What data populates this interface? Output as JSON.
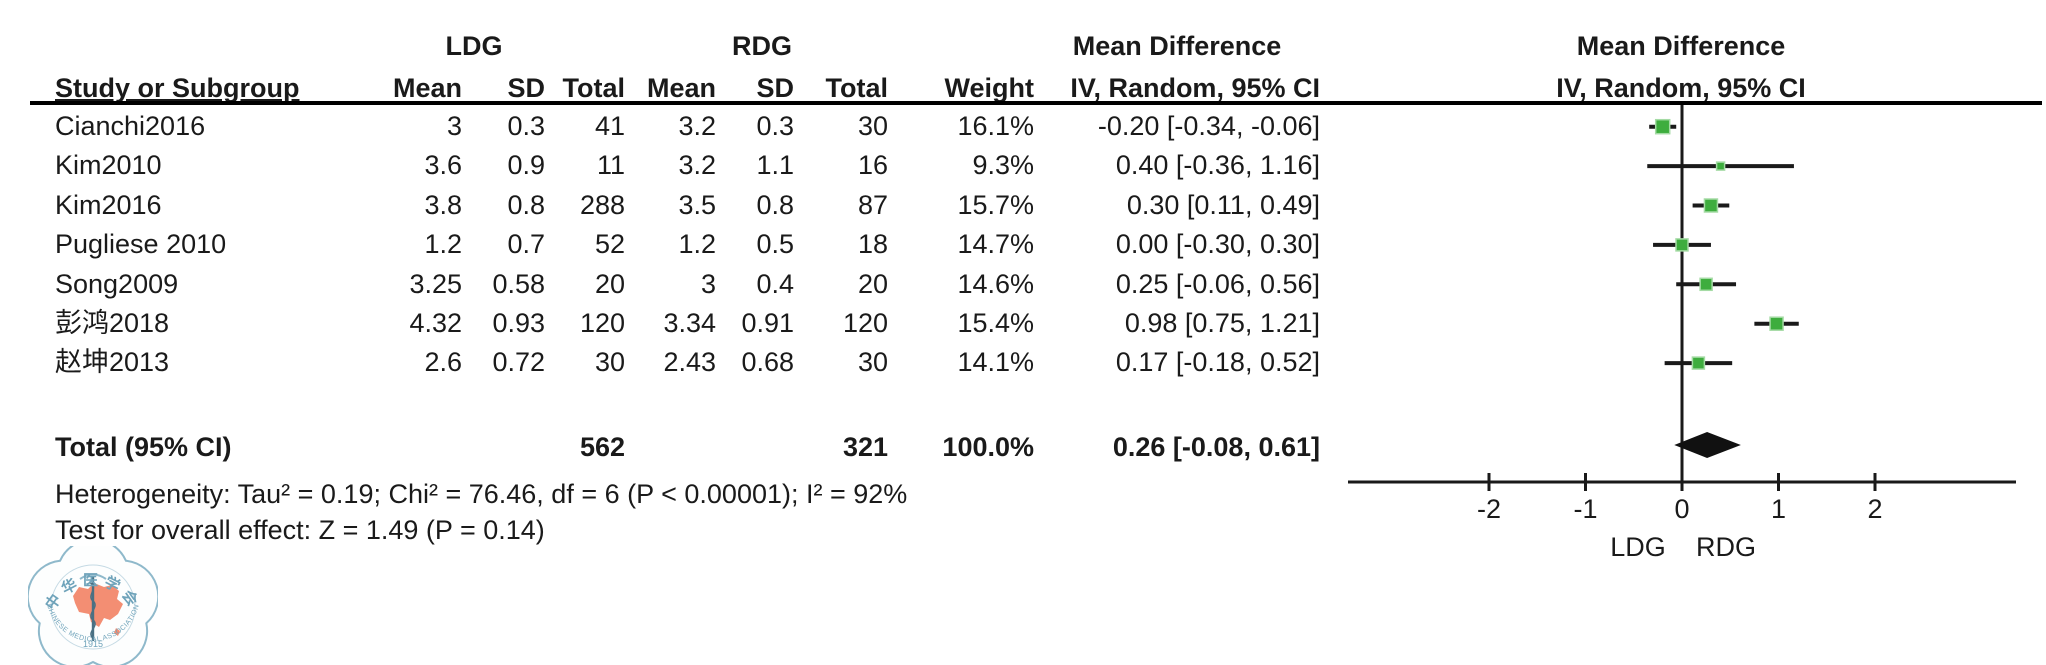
{
  "colors": {
    "marker_green": "#3EAD3E",
    "marker_green_halo": "#A5DBA5",
    "line_black": "#1a1a1a",
    "diamond_black": "#111111",
    "logo_blue": "#6FA3BA",
    "logo_orange": "#F2886C"
  },
  "header": {
    "group_left": "LDG",
    "group_right": "RDG",
    "md_label_table": "Mean Difference",
    "md_label_plot": "Mean Difference",
    "method_label_table": "IV, Random, 95% CI",
    "method_label_plot": "IV, Random, 95% CI",
    "study": "Study or Subgroup",
    "mean": "Mean",
    "sd": "SD",
    "total": "Total",
    "weight": "Weight"
  },
  "rows": [
    {
      "study": "Cianchi2016",
      "mean1": "3",
      "sd1": "0.3",
      "total1": "41",
      "mean2": "3.2",
      "sd2": "0.3",
      "total2": "30",
      "weight": "16.1%",
      "ci": "-0.20 [-0.34, -0.06]"
    },
    {
      "study": "Kim2010",
      "mean1": "3.6",
      "sd1": "0.9",
      "total1": "11",
      "mean2": "3.2",
      "sd2": "1.1",
      "total2": "16",
      "weight": "9.3%",
      "ci": "0.40 [-0.36, 1.16]"
    },
    {
      "study": "Kim2016",
      "mean1": "3.8",
      "sd1": "0.8",
      "total1": "288",
      "mean2": "3.5",
      "sd2": "0.8",
      "total2": "87",
      "weight": "15.7%",
      "ci": "0.30 [0.11, 0.49]"
    },
    {
      "study": "Pugliese 2010",
      "mean1": "1.2",
      "sd1": "0.7",
      "total1": "52",
      "mean2": "1.2",
      "sd2": "0.5",
      "total2": "18",
      "weight": "14.7%",
      "ci": "0.00 [-0.30, 0.30]"
    },
    {
      "study": "Song2009",
      "mean1": "3.25",
      "sd1": "0.58",
      "total1": "20",
      "mean2": "3",
      "sd2": "0.4",
      "total2": "20",
      "weight": "14.6%",
      "ci": "0.25 [-0.06, 0.56]"
    },
    {
      "study": "彭鸿2018",
      "mean1": "4.32",
      "sd1": "0.93",
      "total1": "120",
      "mean2": "3.34",
      "sd2": "0.91",
      "total2": "120",
      "weight": "15.4%",
      "ci": "0.98 [0.75, 1.21]"
    },
    {
      "study": "赵坤2013",
      "mean1": "2.6",
      "sd1": "0.72",
      "total1": "30",
      "mean2": "2.43",
      "sd2": "0.68",
      "total2": "30",
      "weight": "14.1%",
      "ci": "0.17 [-0.18, 0.52]"
    }
  ],
  "total_row": {
    "label": "Total (95% CI)",
    "total1": "562",
    "total2": "321",
    "weight": "100.0%",
    "ci": "0.26 [-0.08, 0.61]"
  },
  "footnotes": {
    "heterogeneity": "Heterogeneity: Tau² = 0.19; Chi² = 76.46, df = 6 (P < 0.00001); I² = 92%",
    "overall_effect": "Test for overall effect: Z = 1.49 (P = 0.14)"
  },
  "axis": {
    "tick_labels": [
      "-2",
      "-1",
      "0",
      "1",
      "2"
    ],
    "favours_left": "LDG",
    "favours_right": "RDG"
  },
  "logo": {
    "top_text": "中华医学会",
    "year": "1915",
    "bottom_text": "CHINESE MEDICAL ASSOCIATION"
  },
  "chart_data": {
    "type": "forest",
    "title": "Mean Difference",
    "method": "IV, Random, 95% CI",
    "group_left": "LDG",
    "group_right": "RDG",
    "x_ticks": [
      -2,
      -1,
      0,
      1,
      2
    ],
    "x_axis_range": [
      -3.45,
      3.45
    ],
    "studies": [
      {
        "name": "Cianchi2016",
        "md": -0.2,
        "ci_lower": -0.34,
        "ci_upper": -0.06,
        "weight_pct": 16.1
      },
      {
        "name": "Kim2010",
        "md": 0.4,
        "ci_lower": -0.36,
        "ci_upper": 1.16,
        "weight_pct": 9.3
      },
      {
        "name": "Kim2016",
        "md": 0.3,
        "ci_lower": 0.11,
        "ci_upper": 0.49,
        "weight_pct": 15.7
      },
      {
        "name": "Pugliese 2010",
        "md": 0.0,
        "ci_lower": -0.3,
        "ci_upper": 0.3,
        "weight_pct": 14.7
      },
      {
        "name": "Song2009",
        "md": 0.25,
        "ci_lower": -0.06,
        "ci_upper": 0.56,
        "weight_pct": 14.6
      },
      {
        "name": "彭鸿2018",
        "md": 0.98,
        "ci_lower": 0.75,
        "ci_upper": 1.21,
        "weight_pct": 15.4
      },
      {
        "name": "赵坤2013",
        "md": 0.17,
        "ci_lower": -0.18,
        "ci_upper": 0.52,
        "weight_pct": 14.1
      }
    ],
    "total": {
      "name": "Total (95% CI)",
      "md": 0.26,
      "ci_lower": -0.08,
      "ci_upper": 0.61,
      "weight_pct": 100.0,
      "ldg_n": 562,
      "rdg_n": 321
    },
    "heterogeneity": {
      "tau2": 0.19,
      "chi2": 76.46,
      "df": 6,
      "p": "< 0.00001",
      "i2_pct": 92
    },
    "overall_effect": {
      "z": 1.49,
      "p": 0.14
    }
  }
}
